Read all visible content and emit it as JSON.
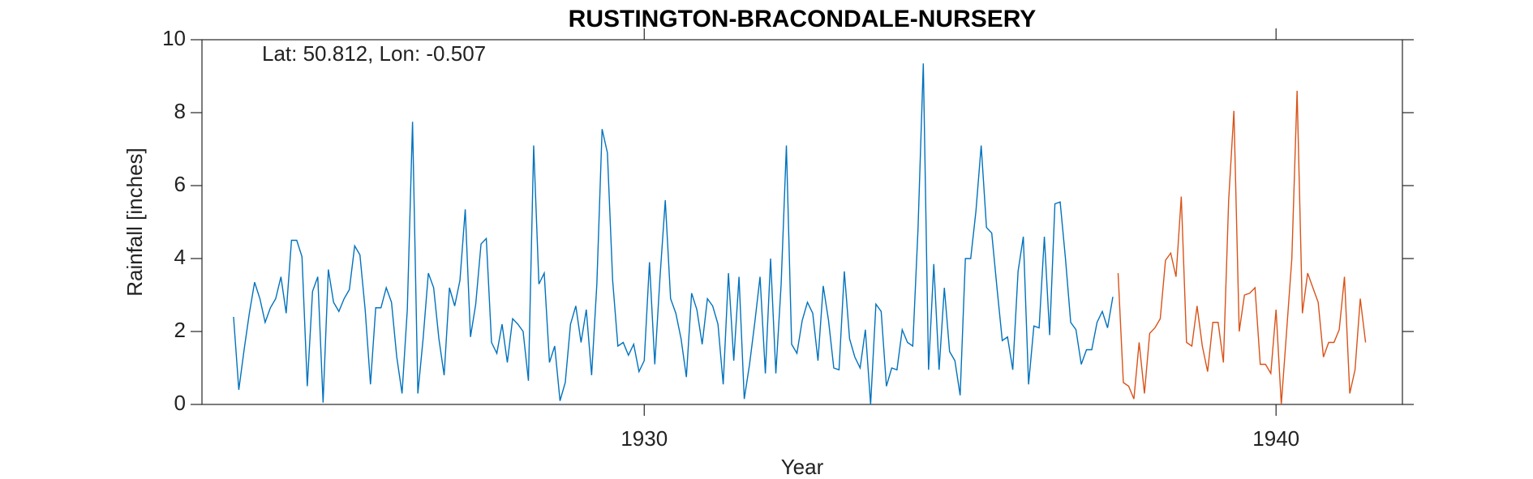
{
  "chart_data": {
    "type": "line",
    "title": "RUSTINGTON-BRACONDALE-NURSERY",
    "annotation": "Lat: 50.812, Lon: -0.507",
    "x_label": "Year",
    "y_label": "Rainfall [inches]",
    "xlim": [
      1923,
      1942
    ],
    "xticks": [
      1930,
      1940
    ],
    "ylim": [
      0,
      10
    ],
    "yticks": [
      0,
      2,
      4,
      6,
      8,
      10
    ],
    "series": [
      {
        "color": "#0072bd",
        "x": [
          1923.5,
          1923.583,
          1923.667,
          1923.75,
          1923.833,
          1923.917,
          1924,
          1924.083,
          1924.167,
          1924.25,
          1924.333,
          1924.417,
          1924.5,
          1924.583,
          1924.667,
          1924.75,
          1924.833,
          1924.917,
          1925,
          1925.083,
          1925.167,
          1925.25,
          1925.333,
          1925.417,
          1925.5,
          1925.583,
          1925.667,
          1925.75,
          1925.833,
          1925.917,
          1926,
          1926.083,
          1926.167,
          1926.25,
          1926.333,
          1926.417,
          1926.5,
          1926.583,
          1926.667,
          1926.75,
          1926.833,
          1926.917,
          1927,
          1927.083,
          1927.167,
          1927.25,
          1927.333,
          1927.417,
          1927.5,
          1927.583,
          1927.667,
          1927.75,
          1927.833,
          1927.917,
          1928,
          1928.083,
          1928.167,
          1928.25,
          1928.333,
          1928.417,
          1928.5,
          1928.583,
          1928.667,
          1928.75,
          1928.833,
          1928.917,
          1929,
          1929.083,
          1929.167,
          1929.25,
          1929.333,
          1929.417,
          1929.5,
          1929.583,
          1929.667,
          1929.75,
          1929.833,
          1929.917,
          1930,
          1930.083,
          1930.167,
          1930.25,
          1930.333,
          1930.417,
          1930.5,
          1930.583,
          1930.667,
          1930.75,
          1930.833,
          1930.917,
          1931,
          1931.083,
          1931.167,
          1931.25,
          1931.333,
          1931.417,
          1931.5,
          1931.583,
          1931.667,
          1931.75,
          1931.833,
          1931.917,
          1932,
          1932.083,
          1932.167,
          1932.25,
          1932.333,
          1932.417,
          1932.5,
          1932.583,
          1932.667,
          1932.75,
          1932.833,
          1932.917,
          1933,
          1933.083,
          1933.167,
          1933.25,
          1933.333,
          1933.417,
          1933.5,
          1933.583,
          1933.667,
          1933.75,
          1933.833,
          1933.917,
          1934,
          1934.083,
          1934.167,
          1934.25,
          1934.333,
          1934.417,
          1934.5,
          1934.583,
          1934.667,
          1934.75,
          1934.833,
          1934.917,
          1935,
          1935.083,
          1935.167,
          1935.25,
          1935.333,
          1935.417,
          1935.5,
          1935.583,
          1935.667,
          1935.75,
          1935.833,
          1935.917,
          1936,
          1936.083,
          1936.167,
          1936.25,
          1936.333,
          1936.417,
          1936.5,
          1936.583,
          1936.667,
          1936.75,
          1936.833,
          1936.917,
          1937,
          1937.083,
          1937.167,
          1937.25,
          1937.333,
          1937.417
        ],
        "values": [
          2.4,
          0.4,
          1.5,
          2.5,
          3.35,
          2.9,
          2.25,
          2.65,
          2.9,
          3.5,
          2.5,
          4.5,
          4.5,
          4.05,
          0.5,
          3.1,
          3.5,
          0.05,
          3.7,
          2.8,
          2.55,
          2.9,
          3.15,
          4.35,
          4.1,
          2.6,
          0.55,
          2.65,
          2.65,
          3.2,
          2.8,
          1.3,
          0.3,
          2.6,
          7.75,
          0.3,
          1.8,
          3.6,
          3.2,
          1.8,
          0.8,
          3.2,
          2.7,
          3.4,
          5.35,
          1.85,
          2.75,
          4.4,
          4.55,
          1.7,
          1.4,
          2.2,
          1.15,
          2.35,
          2.2,
          2.0,
          0.65,
          7.1,
          3.3,
          3.6,
          1.15,
          1.6,
          0.1,
          0.6,
          2.2,
          2.7,
          1.7,
          2.6,
          0.8,
          3.3,
          7.55,
          6.9,
          3.4,
          1.6,
          1.7,
          1.35,
          1.65,
          0.9,
          1.2,
          3.9,
          1.1,
          3.5,
          5.6,
          2.9,
          2.5,
          1.8,
          0.75,
          3.05,
          2.6,
          1.65,
          2.9,
          2.7,
          2.2,
          0.55,
          3.6,
          1.2,
          3.5,
          0.15,
          1.1,
          2.25,
          3.5,
          0.85,
          4.0,
          0.85,
          3.3,
          7.1,
          1.65,
          1.4,
          2.3,
          2.8,
          2.5,
          1.2,
          3.25,
          2.3,
          1.0,
          0.95,
          3.65,
          1.8,
          1.3,
          1.0,
          2.05,
          0.0,
          2.75,
          2.55,
          0.5,
          1.0,
          0.95,
          2.05,
          1.7,
          1.6,
          4.8,
          9.35,
          0.95,
          3.85,
          0.95,
          3.2,
          1.45,
          1.2,
          0.25,
          4.0,
          4.0,
          5.3,
          7.1,
          4.85,
          4.7,
          3.2,
          1.75,
          1.85,
          0.95,
          3.65,
          4.6,
          0.55,
          2.15,
          2.1,
          4.6,
          1.9,
          5.5,
          5.55,
          4.0,
          2.25,
          2.05,
          1.1,
          1.5,
          1.5,
          2.25,
          2.55,
          2.1,
          2.95
        ]
      },
      {
        "color": "#d95319",
        "x": [
          1937.5,
          1937.583,
          1937.667,
          1937.75,
          1937.833,
          1937.917,
          1938,
          1938.083,
          1938.167,
          1938.25,
          1938.333,
          1938.417,
          1938.5,
          1938.583,
          1938.667,
          1938.75,
          1938.833,
          1938.917,
          1939,
          1939.083,
          1939.167,
          1939.25,
          1939.333,
          1939.417,
          1939.5,
          1939.583,
          1939.667,
          1939.75,
          1939.833,
          1939.917,
          1940,
          1940.083,
          1940.167,
          1940.25,
          1940.333,
          1940.417,
          1940.5,
          1940.583,
          1940.667,
          1940.75,
          1940.833,
          1940.917,
          1941,
          1941.083,
          1941.167,
          1941.25,
          1941.333,
          1941.417
        ],
        "values": [
          3.6,
          0.6,
          0.5,
          0.15,
          1.7,
          0.3,
          1.95,
          2.1,
          2.35,
          3.95,
          4.15,
          3.5,
          5.7,
          1.7,
          1.6,
          2.7,
          1.6,
          0.9,
          2.25,
          2.25,
          1.15,
          5.6,
          8.05,
          2.0,
          3.0,
          3.05,
          3.2,
          1.1,
          1.1,
          0.85,
          2.6,
          0.0,
          2.0,
          4.0,
          8.6,
          2.5,
          3.6,
          3.2,
          2.8,
          1.3,
          1.7,
          1.7,
          2.05,
          3.5,
          0.3,
          0.95,
          2.9,
          1.7
        ]
      }
    ]
  }
}
